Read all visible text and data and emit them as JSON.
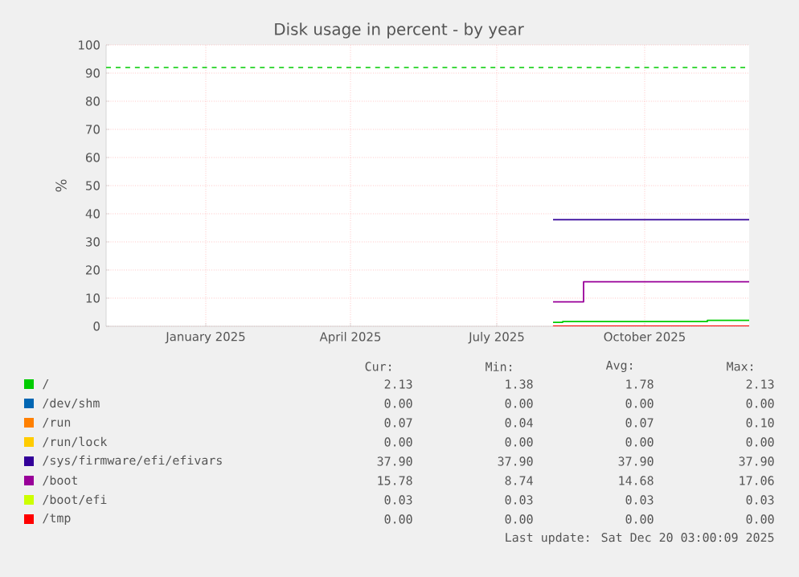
{
  "chart_data": {
    "type": "step",
    "title": "Disk usage in percent - by year",
    "ylabel": "%",
    "xlim": [
      "2024-11-15",
      "2025-12-20"
    ],
    "xticks": [
      {
        "value": "2025-01-16",
        "label": "January 2025"
      },
      {
        "value": "2025-04-16",
        "label": "April 2025"
      },
      {
        "value": "2025-07-16",
        "label": "July 2025"
      },
      {
        "value": "2025-10-16",
        "label": "October 2025"
      }
    ],
    "ylim": [
      0,
      100
    ],
    "yticks": [
      0,
      10,
      20,
      30,
      40,
      50,
      60,
      70,
      80,
      90,
      100
    ],
    "grid": true,
    "legend": "bottom",
    "series": [
      {
        "name": "/",
        "color": "#00cc00",
        "x": [
          "2025-08-20",
          "2025-08-26",
          "2025-11-24",
          "2025-12-20"
        ],
        "values": [
          1.4,
          1.7,
          2.1,
          2.1
        ]
      },
      {
        "name": "/dev/shm",
        "color": "#0066b3"
      },
      {
        "name": "/run",
        "color": "#ff8000"
      },
      {
        "name": "/run/lock",
        "color": "#ffcc00"
      },
      {
        "name": "/sys/firmware/efi/efivars",
        "color": "#330099",
        "x": [
          "2025-08-20",
          "2025-12-20"
        ],
        "values": [
          37.9,
          37.9
        ]
      },
      {
        "name": "/boot",
        "color": "#990099",
        "x": [
          "2025-08-20",
          "2025-09-08",
          "2025-12-20"
        ],
        "values": [
          8.7,
          15.8,
          15.8
        ]
      },
      {
        "name": "/boot/efi",
        "color": "#ccff00"
      },
      {
        "name": "/tmp",
        "color": "#ff0000",
        "x": [
          "2025-08-20",
          "2025-12-20"
        ],
        "values": [
          0,
          0
        ]
      }
    ],
    "ref_lines": [
      {
        "axis": "y",
        "value": 92,
        "color": "#00cc00",
        "line_style": "dashed"
      }
    ],
    "annotations": [
      "Cur:",
      "Min:",
      "Avg:",
      "Max:",
      "2.13",
      "1.38",
      "1.78",
      "2.13",
      "0.00",
      "0.00",
      "0.00",
      "0.00",
      "0.07",
      "0.04",
      "0.07",
      "0.10",
      "0.00",
      "0.00",
      "0.00",
      "0.00",
      "37.90",
      "37.90",
      "37.90",
      "37.90",
      "15.78",
      "8.74",
      "14.68",
      "17.06",
      "0.03",
      "0.03",
      "0.03",
      "0.03",
      "0.00",
      "0.00",
      "0.00",
      "0.00",
      "Last update: Sat Dec 20 03:00:09 2025"
    ]
  }
}
